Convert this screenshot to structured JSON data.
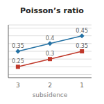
{
  "chart_data": {
    "type": "line",
    "title": "Poisson’s ratio",
    "x_label": "subsidence",
    "x": [
      3,
      2,
      1
    ],
    "series": [
      {
        "color": "#c0392b",
        "marker": "square",
        "values": [
          0.25,
          0.3,
          0.35
        ]
      },
      {
        "color": "#2471a3",
        "marker": "diamond",
        "values": [
          0.35,
          0.4,
          0.45
        ]
      }
    ],
    "xlim": [
      3.3,
      0.7
    ],
    "xticks": [
      3,
      2,
      1
    ],
    "ylim": [
      0.18,
      0.52
    ],
    "yticks": [
      0.2,
      0.25,
      0.3,
      0.35,
      0.4,
      0.45,
      0.5
    ],
    "grid": true,
    "data_labels": true,
    "tick_labels": "x"
  }
}
